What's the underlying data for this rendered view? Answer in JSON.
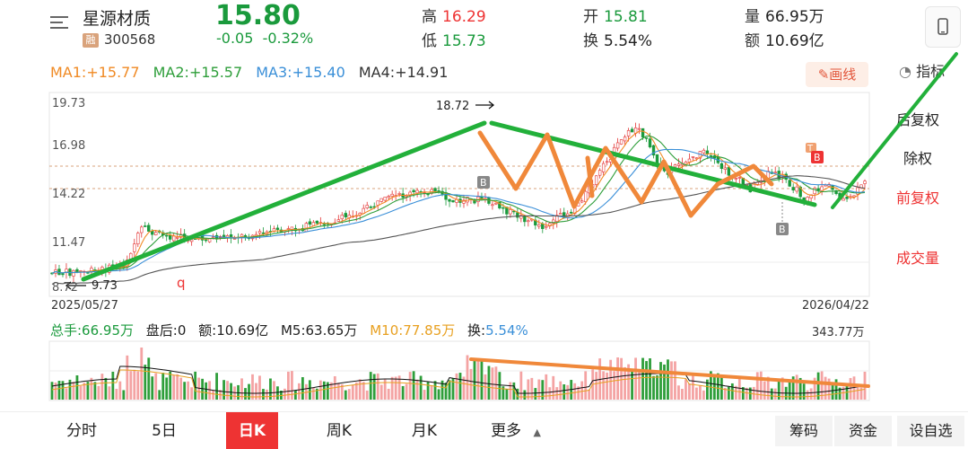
{
  "header": {
    "name": "星源材质",
    "badge": "融",
    "code": "300568",
    "price": "15.80",
    "change": "-0.05",
    "change_pct": "-0.32%",
    "high_label": "高",
    "high": "16.29",
    "low_label": "低",
    "low": "15.73",
    "open_label": "开",
    "open": "15.81",
    "turnover_label": "换",
    "turnover": "5.54%",
    "volume_label": "量",
    "volume": "66.95万",
    "amount_label": "额",
    "amount": "10.69亿"
  },
  "ma": {
    "ma1": "MA1:+15.77",
    "ma2": "MA2:+15.57",
    "ma3": "MA3:+15.40",
    "ma4": "MA4:+14.91",
    "draw_button": "✎画线",
    "indicator_button": "指标"
  },
  "right_panel": {
    "items": [
      "后复权",
      "除权",
      "前复权",
      "成交量"
    ]
  },
  "chart_axes": {
    "y_ticks": [
      "19.73",
      "16.98",
      "14.22",
      "11.47",
      "8.72"
    ],
    "start_date": "2025/05/27",
    "end_date": "2026/04/22",
    "high_marker": "18.72",
    "low_marker": "9.73",
    "marker_q": "q",
    "b_marker": "B",
    "t_marker": "T"
  },
  "volume_row": {
    "total": "总手:66.95万",
    "after": "盘后:0",
    "amount": "额:10.69亿",
    "m5": "M5:63.65万",
    "m10": "M10:77.85万",
    "turnover_label": "换:",
    "turnover_value": "5.54%",
    "max": "343.77万"
  },
  "tabs": {
    "items": [
      "分时",
      "5日",
      "日K",
      "周K",
      "月K",
      "更多"
    ],
    "more_arrow": "▲",
    "right": [
      "筹码",
      "资金",
      "设自选"
    ]
  },
  "colors": {
    "up": "#e33333",
    "down": "#1a9a3c",
    "annotation_green": "#22b03a",
    "annotation_orange": "#f0883a"
  }
}
